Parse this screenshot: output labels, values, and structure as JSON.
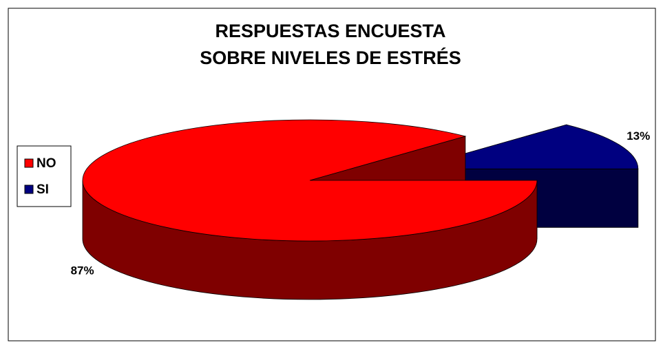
{
  "chart_data": {
    "type": "pie",
    "title": [
      "RESPUESTAS ENCUESTA",
      "SOBRE NIVELES DE ESTRÉS"
    ],
    "categories": [
      "NO",
      "SI"
    ],
    "values": [
      87,
      13
    ],
    "value_labels": [
      "87%",
      "13%"
    ],
    "series_colors": [
      "#ff0000",
      "#000080"
    ],
    "legend": "left",
    "exploded": [
      false,
      true
    ]
  }
}
